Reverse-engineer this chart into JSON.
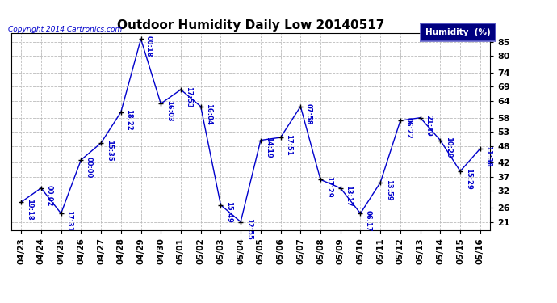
{
  "title": "Outdoor Humidity Daily Low 20140517",
  "copyright": "Copyright 2014 Cartronics.com",
  "legend_label": "Humidity  (%)",
  "x_labels": [
    "04/23",
    "04/24",
    "04/25",
    "04/26",
    "04/27",
    "04/28",
    "04/29",
    "04/30",
    "05/01",
    "05/02",
    "05/03",
    "05/04",
    "05/05",
    "05/06",
    "05/07",
    "05/08",
    "05/09",
    "05/10",
    "05/11",
    "05/12",
    "05/13",
    "05/14",
    "05/15",
    "05/16"
  ],
  "y_values": [
    28,
    33,
    24,
    43,
    49,
    60,
    86,
    63,
    68,
    62,
    27,
    21,
    50,
    51,
    62,
    36,
    33,
    24,
    35,
    57,
    58,
    50,
    39,
    47
  ],
  "time_labels": [
    "19:18",
    "00:02",
    "17:31",
    "00:00",
    "15:35",
    "18:22",
    "00:18",
    "16:03",
    "17:53",
    "16:04",
    "15:49",
    "12:55",
    "14:19",
    "17:51",
    "07:58",
    "17:29",
    "13:17",
    "06:17",
    "13:59",
    "06:22",
    "21:49",
    "10:29",
    "15:29",
    "11:38"
  ],
  "y_ticks": [
    21,
    26,
    32,
    37,
    42,
    48,
    53,
    58,
    64,
    69,
    74,
    80,
    85
  ],
  "ylim": [
    18,
    88
  ],
  "line_color": "#0000cc",
  "marker_color": "#000000",
  "label_color": "#0000cc",
  "bg_color": "#ffffff",
  "grid_color": "#bbbbbb",
  "title_color": "#000000",
  "copyright_color": "#0000cc",
  "legend_bg": "#000080",
  "legend_text_color": "#ffffff"
}
